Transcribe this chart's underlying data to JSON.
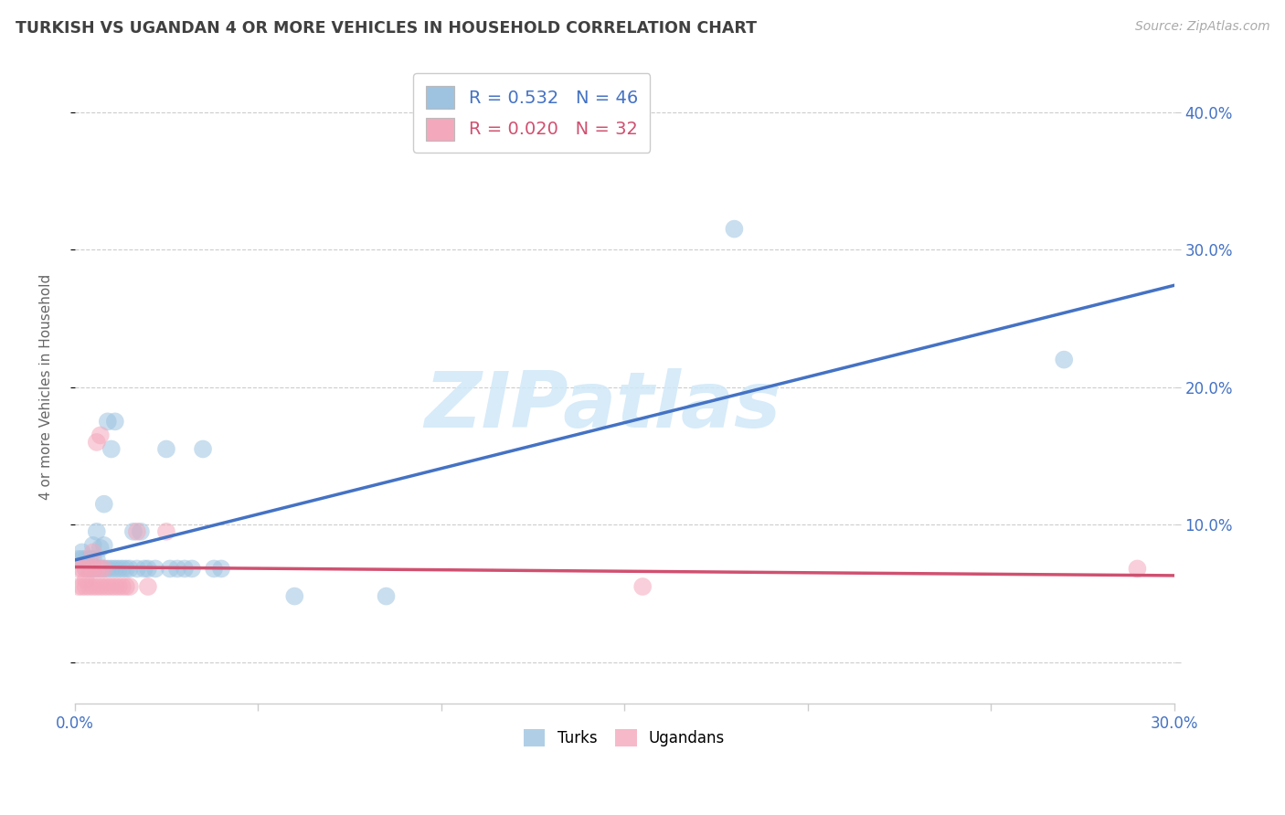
{
  "title": "TURKISH VS UGANDAN 4 OR MORE VEHICLES IN HOUSEHOLD CORRELATION CHART",
  "source": "Source: ZipAtlas.com",
  "ylabel": "4 or more Vehicles in Household",
  "xlim": [
    0.0,
    0.3
  ],
  "ylim": [
    -0.03,
    0.43
  ],
  "yticks": [
    0.0,
    0.1,
    0.2,
    0.3,
    0.4
  ],
  "ytick_labels": [
    "",
    "10.0%",
    "20.0%",
    "30.0%",
    "40.0%"
  ],
  "xtick_positions": [
    0.0,
    0.05,
    0.1,
    0.15,
    0.2,
    0.25,
    0.3
  ],
  "watermark_top": "ZIP",
  "watermark_bot": "atlas",
  "watermark_color": "#d0e8f8",
  "legend_turkish_R": "0.532",
  "legend_turkish_N": "46",
  "legend_ugandan_R": "0.020",
  "legend_ugandan_N": "32",
  "turkish_color": "#9dc3e0",
  "ugandan_color": "#f4a8bc",
  "trend_turkish_color": "#4472c4",
  "trend_ugandan_color": "#d05070",
  "background_color": "#ffffff",
  "grid_color": "#cccccc",
  "axis_color": "#cccccc",
  "title_color": "#404040",
  "source_color": "#aaaaaa",
  "tick_label_color": "#4472c4",
  "ylabel_color": "#666666",
  "turkish_points": [
    [
      0.001,
      0.075
    ],
    [
      0.002,
      0.075
    ],
    [
      0.002,
      0.08
    ],
    [
      0.003,
      0.068
    ],
    [
      0.003,
      0.075
    ],
    [
      0.004,
      0.068
    ],
    [
      0.004,
      0.075
    ],
    [
      0.005,
      0.068
    ],
    [
      0.005,
      0.075
    ],
    [
      0.005,
      0.085
    ],
    [
      0.006,
      0.068
    ],
    [
      0.006,
      0.075
    ],
    [
      0.006,
      0.095
    ],
    [
      0.007,
      0.068
    ],
    [
      0.007,
      0.083
    ],
    [
      0.008,
      0.068
    ],
    [
      0.008,
      0.085
    ],
    [
      0.008,
      0.115
    ],
    [
      0.009,
      0.068
    ],
    [
      0.009,
      0.175
    ],
    [
      0.01,
      0.068
    ],
    [
      0.01,
      0.155
    ],
    [
      0.011,
      0.068
    ],
    [
      0.011,
      0.175
    ],
    [
      0.012,
      0.068
    ],
    [
      0.013,
      0.068
    ],
    [
      0.014,
      0.068
    ],
    [
      0.015,
      0.068
    ],
    [
      0.016,
      0.095
    ],
    [
      0.017,
      0.068
    ],
    [
      0.018,
      0.095
    ],
    [
      0.019,
      0.068
    ],
    [
      0.02,
      0.068
    ],
    [
      0.022,
      0.068
    ],
    [
      0.025,
      0.155
    ],
    [
      0.026,
      0.068
    ],
    [
      0.028,
      0.068
    ],
    [
      0.03,
      0.068
    ],
    [
      0.032,
      0.068
    ],
    [
      0.035,
      0.155
    ],
    [
      0.038,
      0.068
    ],
    [
      0.04,
      0.068
    ],
    [
      0.06,
      0.048
    ],
    [
      0.085,
      0.048
    ],
    [
      0.18,
      0.315
    ],
    [
      0.27,
      0.22
    ]
  ],
  "ugandan_points": [
    [
      0.001,
      0.055
    ],
    [
      0.001,
      0.068
    ],
    [
      0.002,
      0.055
    ],
    [
      0.002,
      0.068
    ],
    [
      0.003,
      0.055
    ],
    [
      0.003,
      0.06
    ],
    [
      0.003,
      0.068
    ],
    [
      0.004,
      0.055
    ],
    [
      0.004,
      0.068
    ],
    [
      0.005,
      0.055
    ],
    [
      0.005,
      0.068
    ],
    [
      0.005,
      0.08
    ],
    [
      0.006,
      0.055
    ],
    [
      0.006,
      0.068
    ],
    [
      0.006,
      0.16
    ],
    [
      0.007,
      0.055
    ],
    [
      0.007,
      0.068
    ],
    [
      0.007,
      0.165
    ],
    [
      0.008,
      0.055
    ],
    [
      0.008,
      0.068
    ],
    [
      0.009,
      0.055
    ],
    [
      0.01,
      0.055
    ],
    [
      0.011,
      0.055
    ],
    [
      0.012,
      0.055
    ],
    [
      0.013,
      0.055
    ],
    [
      0.014,
      0.055
    ],
    [
      0.015,
      0.055
    ],
    [
      0.017,
      0.095
    ],
    [
      0.02,
      0.055
    ],
    [
      0.025,
      0.095
    ],
    [
      0.155,
      0.055
    ],
    [
      0.29,
      0.068
    ]
  ]
}
